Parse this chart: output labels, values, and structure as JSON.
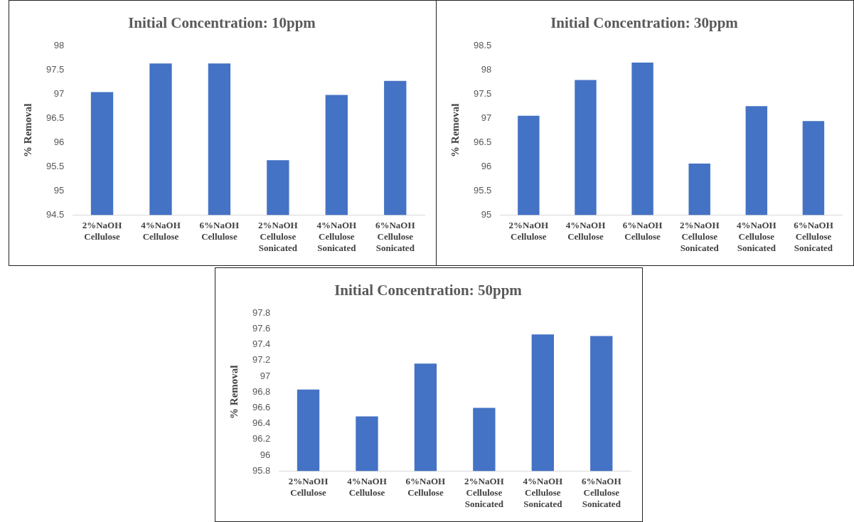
{
  "chart_data": [
    {
      "type": "bar",
      "title": "Initial Concentration: 10ppm",
      "ylabel": "% Removal",
      "categories": [
        "2%NaOH Cellulose",
        "4%NaOH Cellulose",
        "6%NaOH Cellulose",
        "2%NaOH Cellulose Sonicated",
        "4%NaOH Cellulose Sonicated",
        "6%NaOH Cellulose Sonicated"
      ],
      "values": [
        97.04,
        97.63,
        97.63,
        95.63,
        96.98,
        97.27
      ],
      "color": "#4472c4",
      "ylim": [
        94.5,
        98
      ],
      "yticks": [
        94.5,
        95,
        95.5,
        96,
        96.5,
        97,
        97.5,
        98
      ],
      "grid": false,
      "legend": false
    },
    {
      "type": "bar",
      "title": "Initial Concentration: 30ppm",
      "ylabel": "% Removal",
      "categories": [
        "2%NaOH Cellulose",
        "4%NaOH Cellulose",
        "6%NaOH Cellulose",
        "2%NaOH Cellulose Sonicated",
        "4%NaOH Cellulose Sonicated",
        "6%NaOH Cellulose Sonicated"
      ],
      "values": [
        97.05,
        97.79,
        98.15,
        96.06,
        97.25,
        96.94
      ],
      "color": "#4472c4",
      "ylim": [
        95,
        98.5
      ],
      "yticks": [
        95,
        95.5,
        96,
        96.5,
        97,
        97.5,
        98,
        98.5
      ],
      "grid": false,
      "legend": false
    },
    {
      "type": "bar",
      "title": "Initial Concentration: 50ppm",
      "ylabel": "% Removal",
      "categories": [
        "2%NaOH Cellulose",
        "4%NaOH Cellulose",
        "6%NaOH Cellulose",
        "2%NaOH Cellulose Sonicated",
        "4%NaOH Cellulose Sonicated",
        "6%NaOH Cellulose Sonicated"
      ],
      "values": [
        96.83,
        96.49,
        97.16,
        96.6,
        97.53,
        97.51
      ],
      "color": "#4472c4",
      "ylim": [
        95.8,
        97.8
      ],
      "yticks": [
        95.8,
        96,
        96.2,
        96.4,
        96.6,
        96.8,
        97,
        97.2,
        97.4,
        97.6,
        97.8
      ],
      "grid": false,
      "legend": false
    }
  ]
}
